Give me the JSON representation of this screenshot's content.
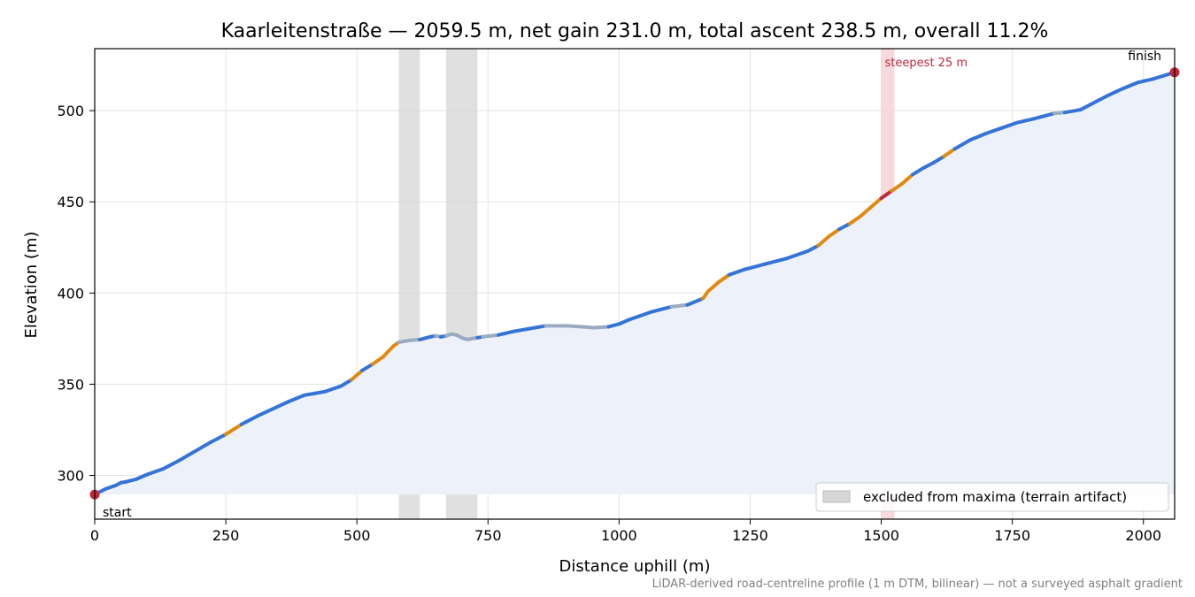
{
  "chart_data": {
    "type": "line",
    "title": "Kaarleitenstraße — 2059.5 m, net gain 231.0 m, total ascent 238.5 m, overall 11.2%",
    "xlabel": "Distance uphill (m)",
    "ylabel": "Elevation (m)",
    "xlim": [
      0,
      2059.5
    ],
    "ylim": [
      276,
      534
    ],
    "x_ticks": [
      0,
      250,
      500,
      750,
      1000,
      1250,
      1500,
      1750,
      2000
    ],
    "y_ticks": [
      300,
      350,
      400,
      450,
      500
    ],
    "grid": true,
    "fill_baseline": 289.5,
    "series": [
      {
        "x": [
          0,
          20,
          40,
          50,
          60,
          80,
          100,
          130,
          160,
          190,
          220,
          250,
          280,
          310,
          340,
          370,
          400,
          420,
          440,
          470,
          490,
          510,
          530,
          550,
          560,
          570,
          580,
          590,
          600,
          620,
          640,
          650,
          660,
          670,
          680,
          690,
          700,
          710,
          720,
          730,
          740,
          770,
          800,
          830,
          860,
          900,
          930,
          950,
          980,
          1000,
          1020,
          1040,
          1060,
          1080,
          1100,
          1130,
          1160,
          1170,
          1190,
          1210,
          1240,
          1280,
          1320,
          1360,
          1380,
          1400,
          1420,
          1440,
          1460,
          1480,
          1500,
          1520,
          1540,
          1560,
          1580,
          1600,
          1620,
          1640,
          1670,
          1700,
          1730,
          1760,
          1790,
          1810,
          1830,
          1850,
          1880,
          1900,
          1930,
          1960,
          1990,
          2020,
          2059.5
        ],
        "y": [
          289.5,
          292.5,
          294.5,
          296,
          296.5,
          298,
          300.5,
          303.5,
          308,
          313,
          318,
          322.5,
          328,
          332.5,
          336.5,
          340.5,
          344,
          345,
          346,
          349,
          352.5,
          357.5,
          361,
          365,
          368,
          371,
          373,
          373.5,
          374,
          374.5,
          376,
          376.5,
          376,
          376.5,
          377.5,
          377,
          375.5,
          374.5,
          375,
          375.5,
          376,
          377,
          379,
          380.5,
          382,
          382,
          381.5,
          381,
          381.5,
          383,
          385.5,
          387.5,
          389.5,
          391,
          392.5,
          393.5,
          397,
          401,
          406,
          410,
          413,
          416,
          419,
          423,
          426,
          431,
          435,
          438,
          442,
          447,
          452,
          456,
          460,
          465,
          468.5,
          471.5,
          475,
          479,
          484,
          487.5,
          490.5,
          493.5,
          495.5,
          497,
          498.5,
          499,
          500.5,
          503.5,
          508,
          512,
          515.5,
          517.5,
          521
        ]
      }
    ],
    "color_legend": {
      "steep": "#3574d6",
      "steeper": "#e08a12",
      "steepest": "#c0283a",
      "excluded_or_flat": "#9aabc0"
    },
    "excluded_zones": [
      [
        580,
        620
      ],
      [
        670,
        730
      ]
    ],
    "steepest_zone": [
      1500,
      1525
    ],
    "markers": [
      {
        "label": "start",
        "x": 0,
        "y": 289.5
      },
      {
        "label": "finish",
        "x": 2059.5,
        "y": 521
      }
    ],
    "annotations": {
      "steepest": "steepest 25 m",
      "legend": "excluded from maxima (terrain artifact)",
      "footnote": "LiDAR-derived road-centreline profile (1 m DTM, bilinear) — not a surveyed asphalt gradient"
    },
    "colors": {
      "fill": "#edf2fa",
      "excluded_band": "#d6d6d6",
      "steepest_band": "#f6cfd3",
      "marker": "#c0283a",
      "grid": "#e3e3e3"
    }
  }
}
